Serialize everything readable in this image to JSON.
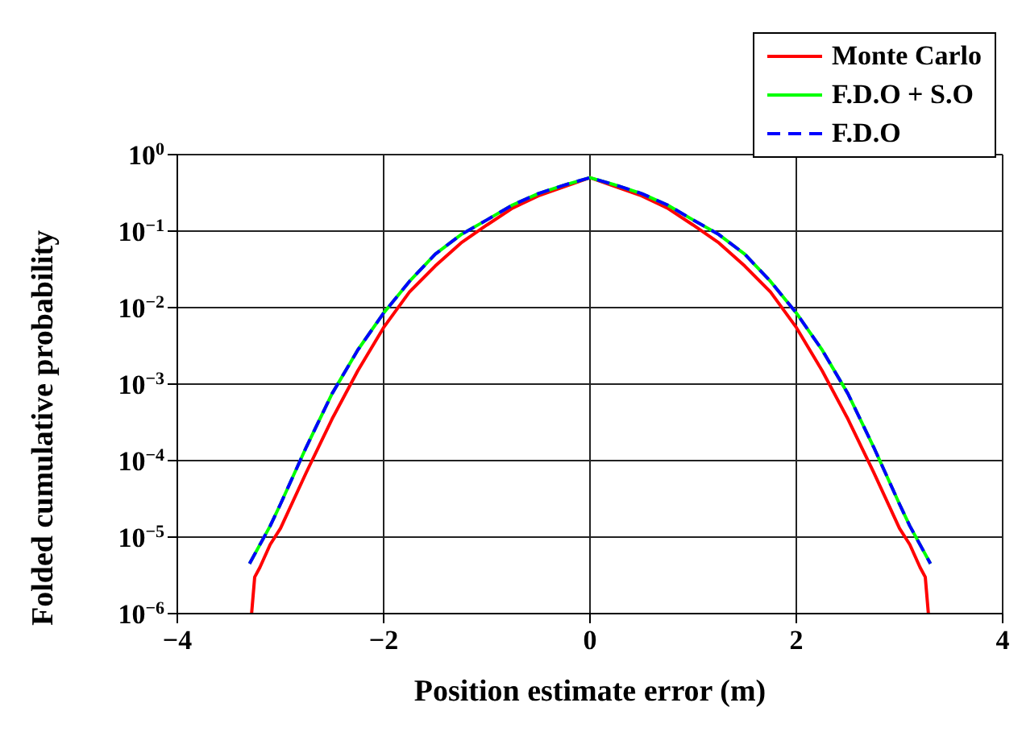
{
  "chart_data": {
    "type": "line",
    "xlabel": "Position estimate error (m)",
    "ylabel": "Folded cumulative probability",
    "xlim": [
      -4,
      4
    ],
    "xticks": [
      {
        "value": -4,
        "label": "−4"
      },
      {
        "value": -2,
        "label": "−2"
      },
      0,
      2,
      4
    ],
    "ylim": [
      1e-06,
      1
    ],
    "log": "y",
    "yticks": [
      {
        "value": 1e-06,
        "label": "10$^{−6}$"
      },
      {
        "value": 1e-05,
        "label": "10$^{−5}$"
      },
      {
        "value": 0.0001,
        "label": "10$^{−4}$"
      },
      {
        "value": 0.001,
        "label": "10$^{−3}$"
      },
      {
        "value": 0.01,
        "label": "10$^{−2}$"
      },
      {
        "value": 0.1,
        "label": "10$^{−1}$"
      },
      {
        "value": 1,
        "label": "10$^{0}$"
      }
    ],
    "grid": true,
    "legend": "top right",
    "marker": "none",
    "series": [
      {
        "name": "Monte Carlo",
        "color": "#ff0000",
        "line_style": "solid",
        "x": [
          -3.28,
          -3.25,
          -3.2,
          -3.1,
          -3,
          -2.75,
          -2.5,
          -2.25,
          -2,
          -1.75,
          -1.5,
          -1.25,
          -1,
          -0.75,
          -0.5,
          -0.25,
          0,
          0.25,
          0.5,
          0.75,
          1,
          1.25,
          1.5,
          1.75,
          2,
          2.25,
          2.5,
          2.75,
          3,
          3.1,
          3.2,
          3.25,
          3.28
        ],
        "values": [
          1e-06,
          3e-06,
          4e-06,
          8e-06,
          1.3e-05,
          7e-05,
          0.00035,
          0.0015,
          0.0055,
          0.016,
          0.035,
          0.07,
          0.12,
          0.2,
          0.29,
          0.38,
          0.5,
          0.38,
          0.29,
          0.2,
          0.12,
          0.07,
          0.035,
          0.016,
          0.0055,
          0.0015,
          0.00035,
          7e-05,
          1.3e-05,
          8e-06,
          4e-06,
          3e-06,
          1e-06
        ]
      },
      {
        "name": "F.D.O + S.O",
        "color": "#00ff00",
        "line_style": "solid",
        "x": [
          -3.3,
          -3.1,
          -3,
          -2.75,
          -2.5,
          -2.25,
          -2,
          -1.75,
          -1.5,
          -1.25,
          -1,
          -0.75,
          -0.5,
          -0.25,
          0,
          0.25,
          0.5,
          0.75,
          1,
          1.25,
          1.5,
          1.75,
          2,
          2.25,
          2.5,
          2.75,
          3,
          3.1,
          3.3
        ],
        "values": [
          4.5e-06,
          1.4e-05,
          2.7e-05,
          0.00015,
          0.00075,
          0.0028,
          0.0085,
          0.022,
          0.05,
          0.09,
          0.14,
          0.22,
          0.31,
          0.4,
          0.5,
          0.4,
          0.31,
          0.22,
          0.14,
          0.09,
          0.05,
          0.022,
          0.0085,
          0.0028,
          0.00075,
          0.00015,
          2.7e-05,
          1.4e-05,
          4.5e-06
        ]
      },
      {
        "name": "F.D.O",
        "color": "#0000ff",
        "line_style": "dashed",
        "x": [
          -3.3,
          -3.1,
          -3,
          -2.75,
          -2.5,
          -2.25,
          -2,
          -1.75,
          -1.5,
          -1.25,
          -1,
          -0.75,
          -0.5,
          -0.25,
          0,
          0.25,
          0.5,
          0.75,
          1,
          1.25,
          1.5,
          1.75,
          2,
          2.25,
          2.5,
          2.75,
          3,
          3.1,
          3.3
        ],
        "values": [
          4.5e-06,
          1.4e-05,
          2.7e-05,
          0.00015,
          0.00075,
          0.0028,
          0.0085,
          0.022,
          0.05,
          0.09,
          0.14,
          0.22,
          0.31,
          0.4,
          0.5,
          0.4,
          0.31,
          0.22,
          0.14,
          0.09,
          0.05,
          0.022,
          0.0085,
          0.0028,
          0.00075,
          0.00015,
          2.7e-05,
          1.4e-05,
          4.5e-06
        ]
      }
    ]
  }
}
